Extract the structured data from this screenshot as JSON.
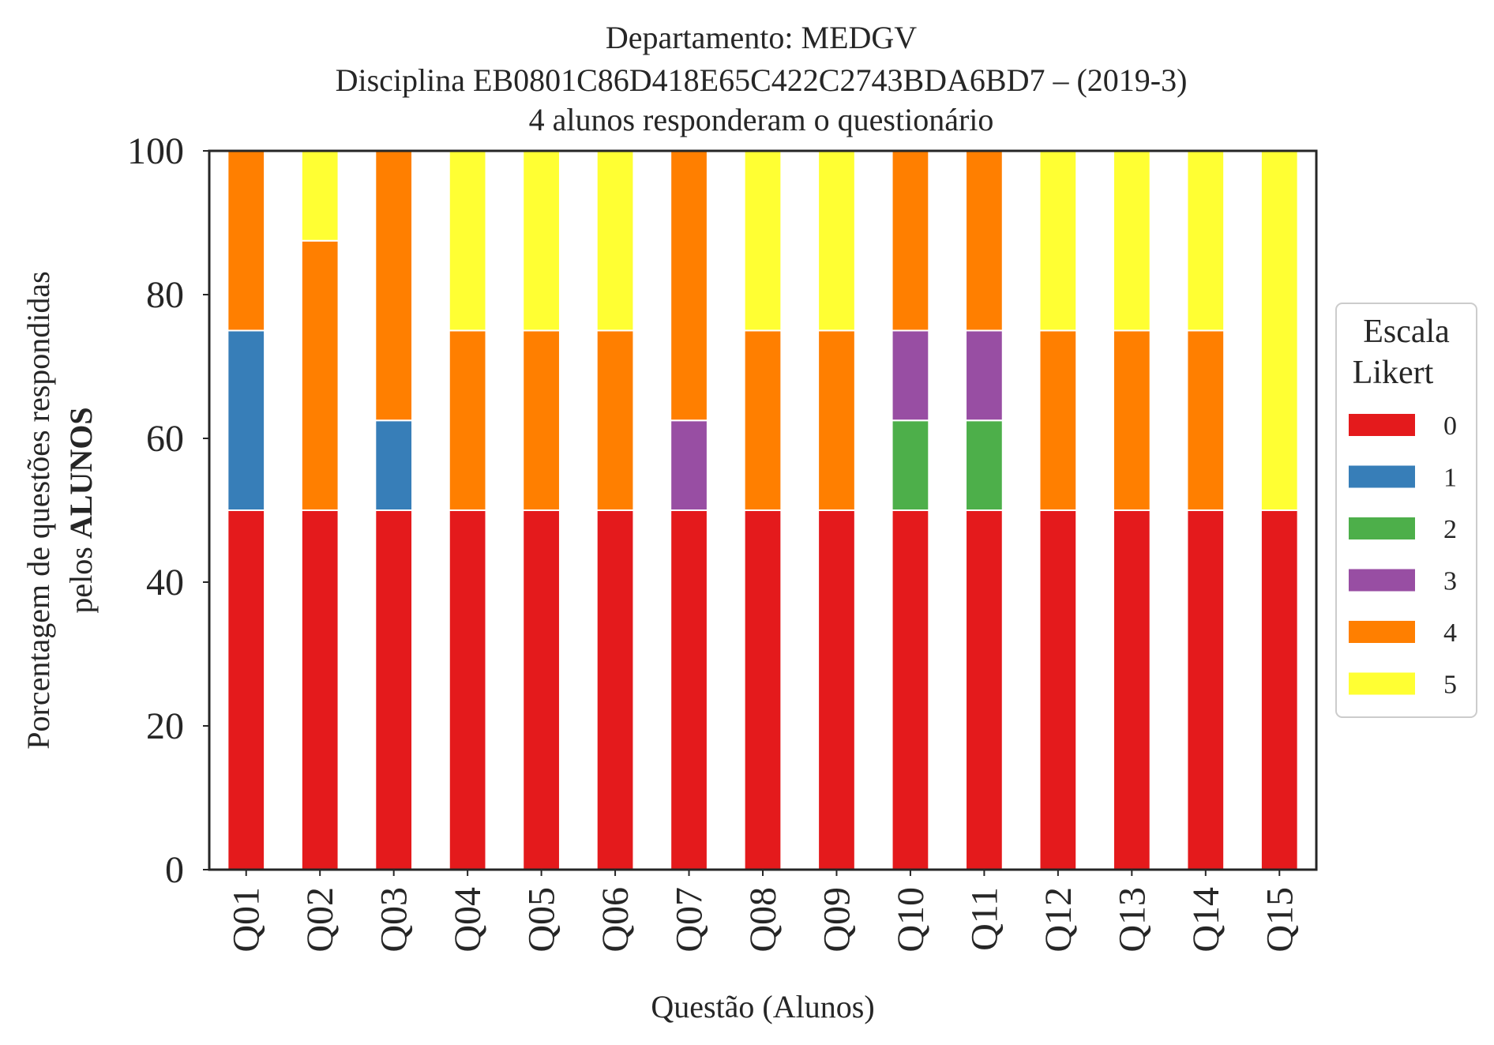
{
  "chart_data": {
    "type": "bar",
    "stacked": true,
    "title_lines": [
      "Departamento: MEDGV",
      "Disciplina EB0801C86D418E65C422C2743BDA6BD7 – (2019-3)",
      "4 alunos responderam o questionário"
    ],
    "xlabel": "Questão (Alunos)",
    "ylabel_lines": [
      "Porcentagem de questões respondidas",
      "pelos",
      "ALUNOS"
    ],
    "ylim": [
      0,
      100
    ],
    "yticks": [
      "0",
      "20",
      "40",
      "60",
      "80",
      "100"
    ],
    "categories": [
      "Q01",
      "Q02",
      "Q03",
      "Q04",
      "Q05",
      "Q06",
      "Q07",
      "Q08",
      "Q09",
      "Q10",
      "Q11",
      "Q12",
      "Q13",
      "Q14",
      "Q15"
    ],
    "legend": {
      "title_lines": [
        "Escala",
        "Likert"
      ],
      "placement": "center-right outside"
    },
    "series": [
      {
        "name": "0",
        "color": "#e41a1c",
        "values": [
          50,
          50,
          50,
          50,
          50,
          50,
          50,
          50,
          50,
          50,
          50,
          50,
          50,
          50,
          50
        ]
      },
      {
        "name": "1",
        "color": "#377eb8",
        "values": [
          25,
          0,
          12.5,
          0,
          0,
          0,
          0,
          0,
          0,
          0,
          0,
          0,
          0,
          0,
          0
        ]
      },
      {
        "name": "2",
        "color": "#4daf4a",
        "values": [
          0,
          0,
          0,
          0,
          0,
          0,
          0,
          0,
          0,
          12.5,
          12.5,
          0,
          0,
          0,
          0
        ]
      },
      {
        "name": "3",
        "color": "#984ea3",
        "values": [
          0,
          0,
          0,
          0,
          0,
          0,
          12.5,
          0,
          0,
          12.5,
          12.5,
          0,
          0,
          0,
          0
        ]
      },
      {
        "name": "4",
        "color": "#ff7f00",
        "values": [
          25,
          37.5,
          37.5,
          25,
          25,
          25,
          37.5,
          25,
          25,
          25,
          25,
          25,
          25,
          25,
          0
        ]
      },
      {
        "name": "5",
        "color": "#ffff33",
        "values": [
          0,
          12.5,
          0,
          25,
          25,
          25,
          0,
          25,
          25,
          0,
          0,
          25,
          25,
          25,
          50
        ]
      }
    ]
  }
}
